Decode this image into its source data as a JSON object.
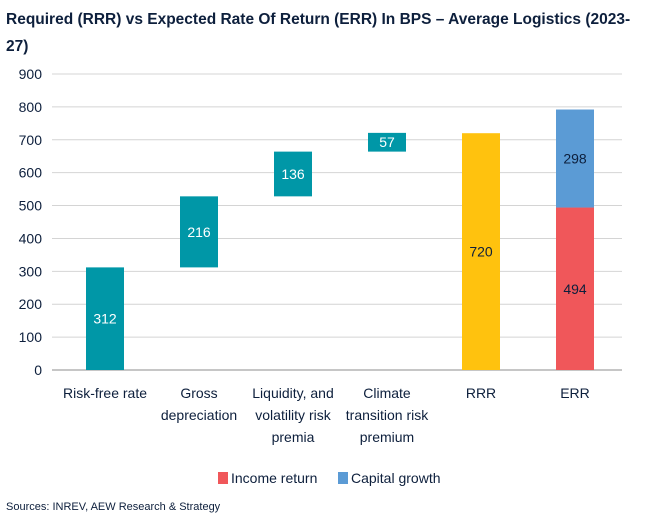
{
  "title": "Required (RRR) vs Expected Rate Of Return (ERR) In BPS – Average Logistics (2023-27)",
  "source": "Sources: INREV, AEW Research & Strategy",
  "colors": {
    "teal": "#0097a7",
    "yellow": "#ffc20e",
    "red": "#f0575a",
    "blue": "#5b9bd5",
    "grid": "#d4d4d4",
    "text": "#0d1f3c"
  },
  "chart_data": {
    "type": "bar",
    "subtype": "waterfall-stacked",
    "title": "Required (RRR) vs Expected Rate Of Return (ERR) In BPS – Average Logistics (2023-27)",
    "categories": [
      [
        "Risk-free rate"
      ],
      [
        "Gross",
        "depreciation"
      ],
      [
        "Liquidity, and",
        "volatility risk",
        "premia"
      ],
      [
        "Climate",
        "transition risk",
        "premium"
      ],
      [
        "RRR"
      ],
      [
        "ERR"
      ]
    ],
    "ylim": [
      0,
      900
    ],
    "yticks": [
      0,
      100,
      200,
      300,
      400,
      500,
      600,
      700,
      800,
      900
    ],
    "grid": true,
    "bars": [
      {
        "category": "Risk-free rate",
        "base": 0,
        "value": 312,
        "color": "teal",
        "label": "312"
      },
      {
        "category": "Gross depreciation",
        "base": 312,
        "value": 216,
        "color": "teal",
        "label": "216"
      },
      {
        "category": "Liquidity, and volatility risk premia",
        "base": 528,
        "value": 136,
        "color": "teal",
        "label": "136"
      },
      {
        "category": "Climate transition risk premium",
        "base": 664,
        "value": 57,
        "color": "teal",
        "label": "57"
      },
      {
        "category": "RRR",
        "base": 0,
        "value": 720,
        "color": "yellow",
        "label": "720"
      },
      {
        "category": "ERR",
        "base": 0,
        "value": 494,
        "color": "red",
        "label": "494",
        "series": "Income return"
      },
      {
        "category": "ERR",
        "base": 494,
        "value": 298,
        "color": "blue",
        "label": "298",
        "series": "Capital growth"
      }
    ],
    "legend": {
      "position": "bottom",
      "items": [
        {
          "name": "Income return",
          "color": "red"
        },
        {
          "name": "Capital growth",
          "color": "blue"
        }
      ]
    }
  }
}
